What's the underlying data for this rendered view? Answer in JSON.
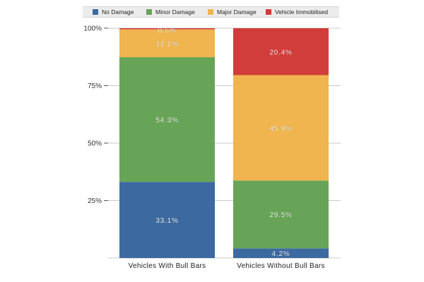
{
  "chart_data": {
    "type": "bar",
    "stacked": true,
    "normalized": true,
    "categories": [
      "Vehicles With Bull Bars",
      "Vehicles Without Bull Bars"
    ],
    "series": [
      {
        "name": "No Damage",
        "color": "#3c6aa0",
        "values": [
          33.1,
          4.2
        ]
      },
      {
        "name": "Minor Damage",
        "color": "#68a457",
        "values": [
          54.3,
          29.5
        ]
      },
      {
        "name": "Major Damage",
        "color": "#f0b54e",
        "values": [
          12.1,
          45.9
        ]
      },
      {
        "name": "Vehicle Immobilised",
        "color": "#d13d3a",
        "values": [
          0.5,
          20.4
        ]
      }
    ],
    "data_labels": [
      [
        "33.1%",
        "4.2%"
      ],
      [
        "54.3%",
        "29.5%"
      ],
      [
        "12.1%",
        "45.9%"
      ],
      [
        "0.5%",
        "20.4%"
      ]
    ],
    "ylim": [
      0,
      100
    ],
    "yticks": [
      "100%",
      "75%",
      "50%",
      "25%"
    ],
    "ytick_values": [
      100,
      75,
      50,
      25
    ],
    "grid": true,
    "legend_position": "top"
  }
}
